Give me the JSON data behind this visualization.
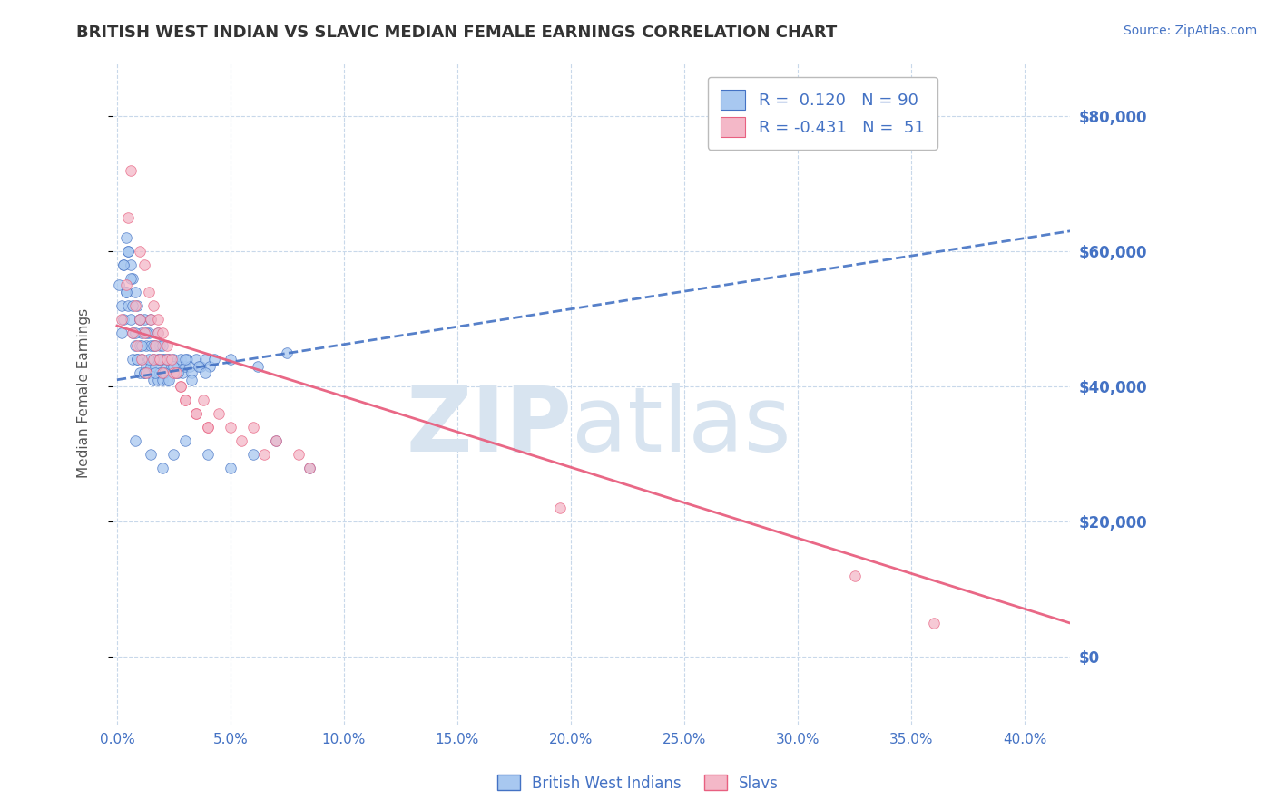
{
  "title": "BRITISH WEST INDIAN VS SLAVIC MEDIAN FEMALE EARNINGS CORRELATION CHART",
  "source_text": "Source: ZipAtlas.com",
  "ylabel": "Median Female Earnings",
  "legend_label1": "British West Indians",
  "legend_label2": "Slavs",
  "legend_R1": "0.120",
  "legend_N1": "90",
  "legend_R2": "-0.431",
  "legend_N2": "51",
  "color_blue": "#A8C8F0",
  "color_blue_line": "#4472C4",
  "color_pink": "#F4B8C8",
  "color_pink_line": "#E86080",
  "color_grid": "#C8D8EA",
  "color_title": "#333333",
  "color_blue_text": "#4472C4",
  "color_watermark": "#D8E4F0",
  "xlim": [
    -0.002,
    0.42
  ],
  "ylim": [
    -10000,
    88000
  ],
  "yticks": [
    0,
    20000,
    40000,
    60000,
    80000
  ],
  "ytick_labels": [
    "$0",
    "$20,000",
    "$40,000",
    "$60,000",
    "$80,000"
  ],
  "xticks": [
    0.0,
    0.05,
    0.1,
    0.15,
    0.2,
    0.25,
    0.3,
    0.35,
    0.4
  ],
  "xtick_labels": [
    "0.0%",
    "5.0%",
    "10.0%",
    "15.0%",
    "20.0%",
    "25.0%",
    "30.0%",
    "35.0%",
    "40.0%"
  ],
  "blue_scatter_x": [
    0.001,
    0.002,
    0.002,
    0.003,
    0.003,
    0.004,
    0.004,
    0.005,
    0.005,
    0.006,
    0.006,
    0.007,
    0.007,
    0.007,
    0.008,
    0.008,
    0.009,
    0.009,
    0.01,
    0.01,
    0.01,
    0.011,
    0.011,
    0.012,
    0.012,
    0.013,
    0.013,
    0.014,
    0.014,
    0.015,
    0.015,
    0.016,
    0.016,
    0.017,
    0.017,
    0.018,
    0.018,
    0.019,
    0.019,
    0.02,
    0.02,
    0.021,
    0.022,
    0.022,
    0.023,
    0.024,
    0.025,
    0.026,
    0.027,
    0.028,
    0.029,
    0.03,
    0.031,
    0.032,
    0.033,
    0.035,
    0.037,
    0.039,
    0.041,
    0.043,
    0.003,
    0.004,
    0.005,
    0.006,
    0.007,
    0.008,
    0.009,
    0.01,
    0.011,
    0.012,
    0.013,
    0.014,
    0.015,
    0.016,
    0.017,
    0.018,
    0.019,
    0.02,
    0.021,
    0.022,
    0.023,
    0.025,
    0.027,
    0.03,
    0.033,
    0.036,
    0.039,
    0.05,
    0.062,
    0.075
  ],
  "blue_scatter_y": [
    55000,
    52000,
    48000,
    58000,
    50000,
    62000,
    54000,
    60000,
    52000,
    58000,
    50000,
    56000,
    48000,
    44000,
    54000,
    46000,
    52000,
    44000,
    50000,
    46000,
    42000,
    48000,
    44000,
    50000,
    42000,
    46000,
    43000,
    48000,
    42000,
    46000,
    43000,
    44000,
    41000,
    46000,
    43000,
    44000,
    41000,
    46000,
    42000,
    44000,
    41000,
    44000,
    43000,
    41000,
    44000,
    43000,
    44000,
    42000,
    43000,
    44000,
    42000,
    43000,
    44000,
    43000,
    42000,
    44000,
    43000,
    44000,
    43000,
    44000,
    58000,
    54000,
    60000,
    56000,
    52000,
    48000,
    44000,
    50000,
    46000,
    42000,
    48000,
    44000,
    50000,
    46000,
    42000,
    48000,
    44000,
    46000,
    42000,
    44000,
    41000,
    43000,
    42000,
    44000,
    41000,
    43000,
    42000,
    44000,
    43000,
    45000
  ],
  "blue_scatter_lowx": [
    0.008,
    0.015,
    0.02,
    0.025,
    0.03,
    0.04,
    0.05,
    0.06,
    0.07,
    0.085
  ],
  "blue_scatter_lowy": [
    32000,
    30000,
    28000,
    30000,
    32000,
    30000,
    28000,
    30000,
    32000,
    28000
  ],
  "pink_scatter_x": [
    0.002,
    0.004,
    0.005,
    0.006,
    0.007,
    0.008,
    0.009,
    0.01,
    0.011,
    0.012,
    0.013,
    0.015,
    0.016,
    0.017,
    0.018,
    0.019,
    0.02,
    0.022,
    0.025,
    0.028,
    0.03,
    0.035,
    0.038,
    0.04,
    0.045,
    0.05,
    0.055,
    0.06,
    0.065,
    0.07,
    0.01,
    0.012,
    0.014,
    0.016,
    0.018,
    0.02,
    0.022,
    0.024,
    0.026,
    0.028,
    0.03,
    0.035,
    0.04,
    0.08,
    0.085,
    0.195,
    0.325,
    0.36
  ],
  "pink_scatter_y": [
    50000,
    55000,
    65000,
    72000,
    48000,
    52000,
    46000,
    50000,
    44000,
    48000,
    42000,
    50000,
    44000,
    46000,
    48000,
    44000,
    42000,
    44000,
    42000,
    40000,
    38000,
    36000,
    38000,
    34000,
    36000,
    34000,
    32000,
    34000,
    30000,
    32000,
    60000,
    58000,
    54000,
    52000,
    50000,
    48000,
    46000,
    44000,
    42000,
    40000,
    38000,
    36000,
    34000,
    30000,
    28000,
    22000,
    12000,
    5000
  ],
  "blue_trend_x": [
    0.0,
    0.42
  ],
  "blue_trend_y": [
    41000,
    63000
  ],
  "pink_trend_x": [
    0.0,
    0.42
  ],
  "pink_trend_y": [
    49000,
    5000
  ],
  "watermark_zip": "ZIP",
  "watermark_atlas": "atlas",
  "figsize": [
    14.06,
    8.92
  ],
  "dpi": 100
}
